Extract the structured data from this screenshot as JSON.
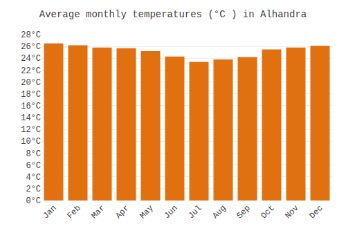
{
  "chart_data": {
    "type": "bar",
    "title": "Average monthly temperatures (°C ) in Alhandra",
    "categories": [
      "Jan",
      "Feb",
      "Mar",
      "Apr",
      "May",
      "Jun",
      "Jul",
      "Aug",
      "Sep",
      "Oct",
      "Nov",
      "Dec"
    ],
    "values": [
      26.5,
      26.2,
      25.8,
      25.7,
      25.2,
      24.3,
      23.4,
      23.8,
      24.2,
      25.5,
      25.8,
      26.1
    ],
    "color": "#E07010",
    "ylim": [
      0,
      28
    ],
    "yticks": [
      {
        "value": 0,
        "label": "0°C"
      },
      {
        "value": 2,
        "label": "2°C"
      },
      {
        "value": 4,
        "label": "4°C"
      },
      {
        "value": 6,
        "label": "6°C"
      },
      {
        "value": 8,
        "label": "8°C"
      },
      {
        "value": 10,
        "label": "10°C"
      },
      {
        "value": 12,
        "label": "12°C"
      },
      {
        "value": 14,
        "label": "14°C"
      },
      {
        "value": 16,
        "label": "16°C"
      },
      {
        "value": 18,
        "label": "18°C"
      },
      {
        "value": 20,
        "label": "20°C"
      },
      {
        "value": 22,
        "label": "22°C"
      },
      {
        "value": 24,
        "label": "24°C"
      },
      {
        "value": 26,
        "label": "26°C"
      },
      {
        "value": 28,
        "label": "28°C"
      }
    ],
    "grid": true
  }
}
